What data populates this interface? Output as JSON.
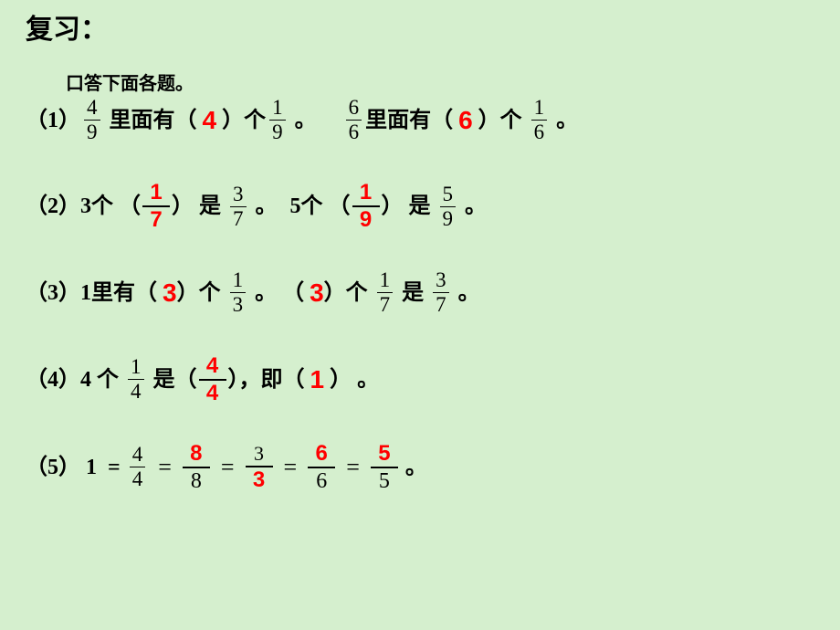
{
  "colors": {
    "background": "#d5efce",
    "text": "#000000",
    "answer": "#ff0000"
  },
  "typography": {
    "body_font": "SimSun",
    "answer_font": "Arial",
    "math_font": "Times New Roman",
    "title_fontsize_pt": 22,
    "body_fontsize_pt": 18,
    "answer_fontsize_pt": 21
  },
  "title": "复习：",
  "instruction": "口答下面各题。",
  "q1": {
    "label": "（1）",
    "fracA": {
      "num": "4",
      "den": "9"
    },
    "t1": " 里面有（ ",
    "ansA": "4",
    "t2": " ）个",
    "fracB": {
      "num": "1",
      "den": "9"
    },
    "t3": " 。",
    "fracC": {
      "num": "6",
      "den": "6"
    },
    "t4": "里面有（ ",
    "ansB": "6",
    "t5": " ）个 ",
    "fracD": {
      "num": "1",
      "den": "6"
    },
    "t6": " 。"
  },
  "q2": {
    "label": "（2）",
    "t1": "3个 （",
    "ansFracA": {
      "num": "1",
      "den": "7"
    },
    "t2": "） 是 ",
    "fracA": {
      "num": "3",
      "den": "7"
    },
    "t3": " 。",
    "t4": "5个 （",
    "ansFracB": {
      "num": "1",
      "den": "9"
    },
    "t5": "） 是 ",
    "fracB": {
      "num": "5",
      "den": "9"
    },
    "t6": " 。"
  },
  "q3": {
    "label": "（3）",
    "t1": "1里有（ ",
    "ansA": "3",
    "t2": "）个 ",
    "fracA": {
      "num": "1",
      "den": "3"
    },
    "t3": " 。 （",
    "ansB": "3",
    "t4": "）个 ",
    "fracB": {
      "num": "1",
      "den": "7"
    },
    "t5": " 是 ",
    "fracC": {
      "num": "3",
      "den": "7"
    },
    "t6": " 。"
  },
  "q4": {
    "label": "（4）",
    "t1": "4 个 ",
    "fracA": {
      "num": "1",
      "den": "4"
    },
    "t2": " 是（",
    "ansFrac": {
      "num": "4",
      "den": "4"
    },
    "t3": "），即（ ",
    "ansB": "1",
    "t4": " ） 。"
  },
  "q5": {
    "label": "（5）",
    "t1": " 1  =",
    "fracA": {
      "num": "4",
      "den": "4"
    },
    "eq": "=",
    "ansFracA": {
      "num": "8",
      "den": "8"
    },
    "fracB": {
      "num": "3",
      "den": "3"
    },
    "ansFracB": {
      "num": "6",
      "den": "6"
    },
    "ansFracC": {
      "num": "5",
      "den": "5"
    },
    "t_end": " 。"
  }
}
